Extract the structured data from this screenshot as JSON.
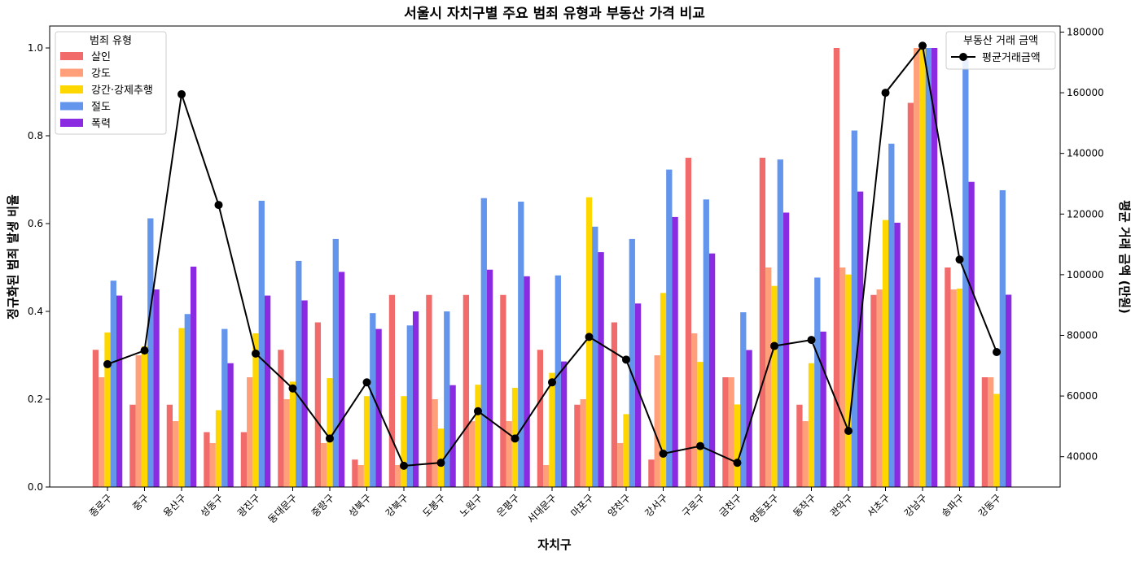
{
  "chart_data": {
    "type": "bar",
    "title": "서울시 자치구별 주요 범죄 유형과 부동산 가격 비교",
    "xlabel": "자치구",
    "ylabel": "정규화된 범죄 발생 비율",
    "y2label": "평균 거래 금액 (만원)",
    "ylim": [
      0,
      1.05
    ],
    "y2lim": [
      30000,
      182000
    ],
    "yticks": [
      0.0,
      0.2,
      0.4,
      0.6,
      0.8,
      1.0
    ],
    "y2ticks": [
      40000,
      60000,
      80000,
      100000,
      120000,
      140000,
      160000,
      180000
    ],
    "categories": [
      "종로구",
      "중구",
      "용산구",
      "성동구",
      "광진구",
      "동대문구",
      "중랑구",
      "성북구",
      "강북구",
      "도봉구",
      "노원구",
      "은평구",
      "서대문구",
      "마포구",
      "양천구",
      "강서구",
      "구로구",
      "금천구",
      "영등포구",
      "동작구",
      "관악구",
      "서초구",
      "강남구",
      "송파구",
      "강동구"
    ],
    "legend_title": "범죄 유형",
    "legend_position": "top-left",
    "series": [
      {
        "name": "살인",
        "color": "#f26b6b",
        "values": [
          0.3125,
          0.1875,
          0.1875,
          0.125,
          0.125,
          0.3125,
          0.375,
          0.0625,
          0.4375,
          0.4375,
          0.4375,
          0.4375,
          0.3125,
          0.1875,
          0.375,
          0.0625,
          0.75,
          0.25,
          0.75,
          0.1875,
          1.0,
          0.4375,
          0.875,
          0.5,
          0.25
        ]
      },
      {
        "name": "강도",
        "color": "#ffa07a",
        "values": [
          0.25,
          0.3,
          0.15,
          0.1,
          0.25,
          0.2,
          0.1,
          0.05,
          0.05,
          0.2,
          0.15,
          0.15,
          0.05,
          0.2,
          0.1,
          0.3,
          0.35,
          0.25,
          0.5,
          0.15,
          0.5,
          0.45,
          1.0,
          0.45,
          0.25
        ]
      },
      {
        "name": "강간·강제추행",
        "color": "#ffd700",
        "values": [
          0.352,
          0.32,
          0.362,
          0.175,
          0.35,
          0.24,
          0.248,
          0.207,
          0.207,
          0.133,
          0.233,
          0.226,
          0.26,
          0.66,
          0.166,
          0.442,
          0.285,
          0.188,
          0.458,
          0.282,
          0.484,
          0.608,
          1.0,
          0.452,
          0.212
        ]
      },
      {
        "name": "절도",
        "color": "#6495ed",
        "values": [
          0.47,
          0.612,
          0.394,
          0.36,
          0.652,
          0.515,
          0.565,
          0.396,
          0.368,
          0.4,
          0.658,
          0.65,
          0.482,
          0.593,
          0.565,
          0.723,
          0.655,
          0.398,
          0.746,
          0.477,
          0.812,
          0.782,
          1.0,
          0.98,
          0.676
        ]
      },
      {
        "name": "폭력",
        "color": "#8a2be2",
        "values": [
          0.436,
          0.45,
          0.502,
          0.282,
          0.436,
          0.425,
          0.49,
          0.36,
          0.4,
          0.232,
          0.495,
          0.48,
          0.286,
          0.535,
          0.418,
          0.615,
          0.532,
          0.312,
          0.625,
          0.354,
          0.673,
          0.602,
          1.0,
          0.695,
          0.438
        ]
      }
    ],
    "line_series": {
      "name": "평균거래금액",
      "legend_title": "부동산 거래 금액",
      "legend_position": "top-right",
      "color": "#000000",
      "values": [
        70500,
        75000,
        159500,
        123000,
        74000,
        62500,
        46000,
        64500,
        37000,
        38000,
        55000,
        46000,
        64500,
        79500,
        72000,
        41000,
        43500,
        38000,
        76500,
        78500,
        48500,
        160000,
        175500,
        105000,
        74500
      ]
    },
    "grid": false
  }
}
